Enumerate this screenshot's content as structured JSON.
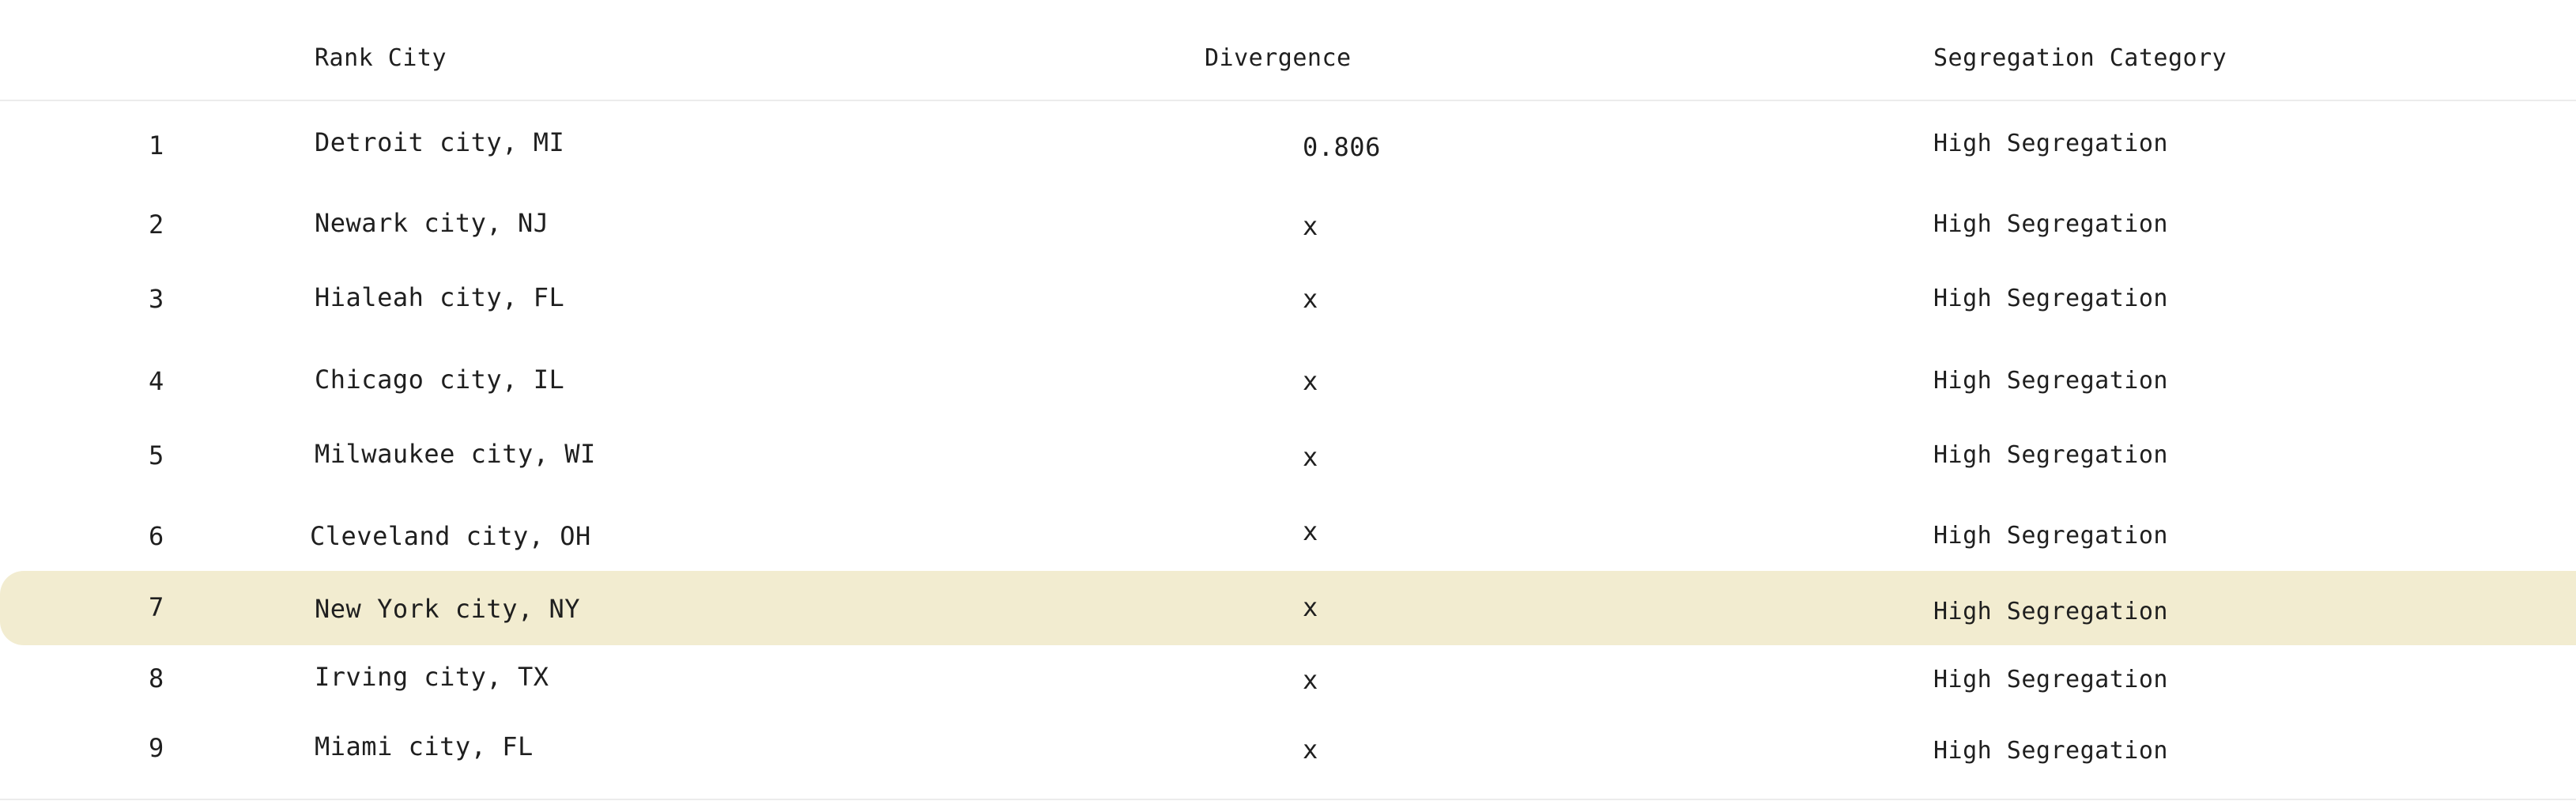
{
  "table": {
    "headers": {
      "rank_city": "Rank City",
      "divergence": "Divergence",
      "category": "Segregation Category"
    },
    "rows": [
      {
        "rank": "1",
        "city": "Detroit city, MI",
        "divergence": "0.806",
        "category": "High Segregation"
      },
      {
        "rank": "2",
        "city": "Newark city, NJ",
        "divergence": "x",
        "category": "High Segregation"
      },
      {
        "rank": "3",
        "city": "Hialeah city, FL",
        "divergence": "x",
        "category": "High Segregation"
      },
      {
        "rank": "4",
        "city": "Chicago city, IL",
        "divergence": "x",
        "category": "High Segregation"
      },
      {
        "rank": "5",
        "city": "Milwaukee city, WI",
        "divergence": "x",
        "category": "High Segregation"
      },
      {
        "rank": "6",
        "city": "Cleveland city, OH",
        "divergence": "x",
        "category": "High Segregation"
      },
      {
        "rank": "7",
        "city": "New York city, NY",
        "divergence": "x",
        "category": "High Segregation",
        "highlighted": true
      },
      {
        "rank": "8",
        "city": "Irving city, TX",
        "divergence": "x",
        "category": "High Segregation"
      },
      {
        "rank": "9",
        "city": "Miami city, FL",
        "divergence": "x",
        "category": "High Segregation"
      }
    ]
  },
  "colors": {
    "highlight_row": "#f2ecd0",
    "divider": "#ececec",
    "text": "#1f1f1f"
  }
}
